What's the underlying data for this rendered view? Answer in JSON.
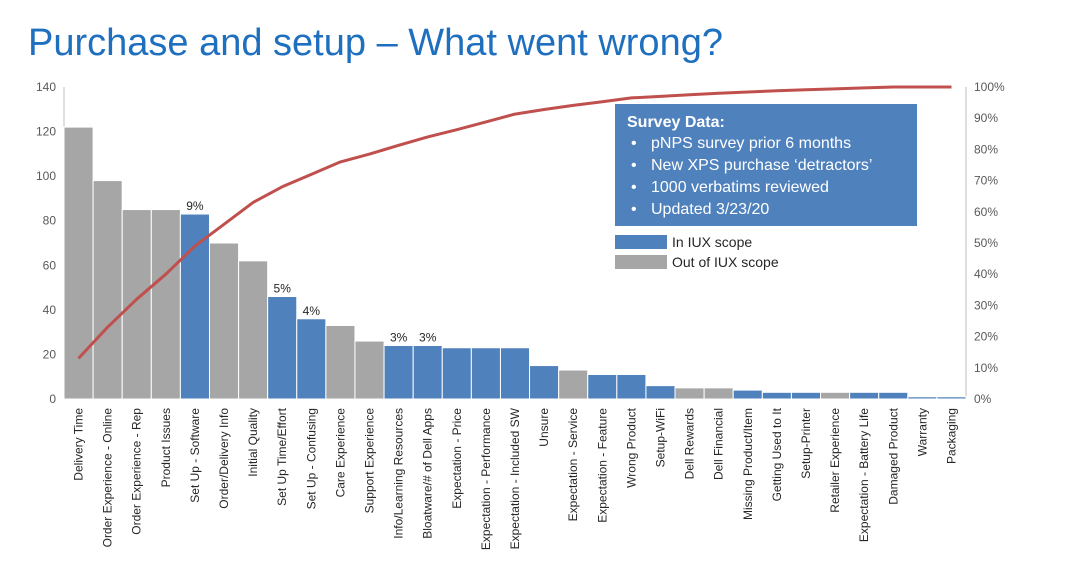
{
  "slide": {
    "title": "Purchase and setup – What went wrong?"
  },
  "info_box": {
    "heading": "Survey Data:",
    "items": [
      "pNPS survey prior 6 months",
      "New XPS purchase ‘detractors’",
      "1000 verbatims reviewed",
      "Updated 3/23/20"
    ]
  },
  "legend": {
    "items": [
      {
        "label": "In IUX scope",
        "color": "#4f81bd"
      },
      {
        "label": "Out of IUX scope",
        "color": "#a6a6a6"
      }
    ]
  },
  "colors": {
    "in_scope": "#4f81bd",
    "out_scope": "#a6a6a6",
    "cumulative_line": "#c0504d",
    "info_box": "#4f81bd",
    "title": "#1f6fbf"
  },
  "chart_data": {
    "type": "bar",
    "categories": [
      "Delivery Time",
      "Order Experience - Online",
      "Order Experience - Rep",
      "Product Issues",
      "Set Up - Software",
      "Order/Delivery Info",
      "Initial Quality",
      "Set Up Time/Effort",
      "Set Up - Confusing",
      "Care Experience",
      "Support Experience",
      "Info/Learning Resources",
      "Bloatware/# of Dell Apps",
      "Expectation - Price",
      "Expectation - Performance",
      "Expectation - Included SW",
      "Unsure",
      "Expectation - Service",
      "Expectation - Feature",
      "Wrong Product",
      "Setup-WiFi",
      "Dell Rewards",
      "Dell Financial",
      "Missing Product/Item",
      "Getting Used to It",
      "Setup-Printer",
      "Retailer Experience",
      "Expectation - Battery Life",
      "Damaged Product",
      "Warranty",
      "Packaging"
    ],
    "values": [
      122,
      98,
      85,
      85,
      83,
      70,
      62,
      46,
      36,
      33,
      26,
      24,
      24,
      23,
      23,
      23,
      15,
      13,
      11,
      11,
      6,
      5,
      5,
      4,
      3,
      3,
      3,
      3,
      3,
      1,
      1
    ],
    "scope": [
      "out",
      "out",
      "out",
      "out",
      "in",
      "out",
      "out",
      "in",
      "in",
      "out",
      "out",
      "in",
      "in",
      "in",
      "in",
      "in",
      "in",
      "out",
      "in",
      "in",
      "in",
      "out",
      "out",
      "in",
      "in",
      "in",
      "out",
      "in",
      "in",
      "in",
      "in"
    ],
    "data_labels": [
      "",
      "",
      "",
      "",
      "9%",
      "",
      "",
      "5%",
      "4%",
      "",
      "",
      "3%",
      "3%",
      "",
      "",
      "",
      "",
      "",
      "",
      "",
      "",
      "",
      "",
      "",
      "",
      "",
      "",
      "",
      "",
      "",
      ""
    ],
    "cumulative": [
      13,
      23,
      32,
      40,
      49,
      56,
      63,
      68,
      72,
      76,
      78.5,
      81.3,
      84,
      86.3,
      88.8,
      91.3,
      92.8,
      94.1,
      95.3,
      96.5,
      97,
      97.5,
      98,
      98.4,
      98.8,
      99.1,
      99.4,
      99.7,
      100,
      100,
      100
    ],
    "ylim": [
      0,
      140
    ],
    "yticks": [
      0,
      20,
      40,
      60,
      80,
      100,
      120,
      140
    ],
    "y2lim": [
      0,
      100
    ],
    "y2ticks": [
      "0%",
      "10%",
      "20%",
      "30%",
      "40%",
      "50%",
      "60%",
      "70%",
      "80%",
      "90%",
      "100%"
    ],
    "legend_position": "right",
    "grid": false
  }
}
